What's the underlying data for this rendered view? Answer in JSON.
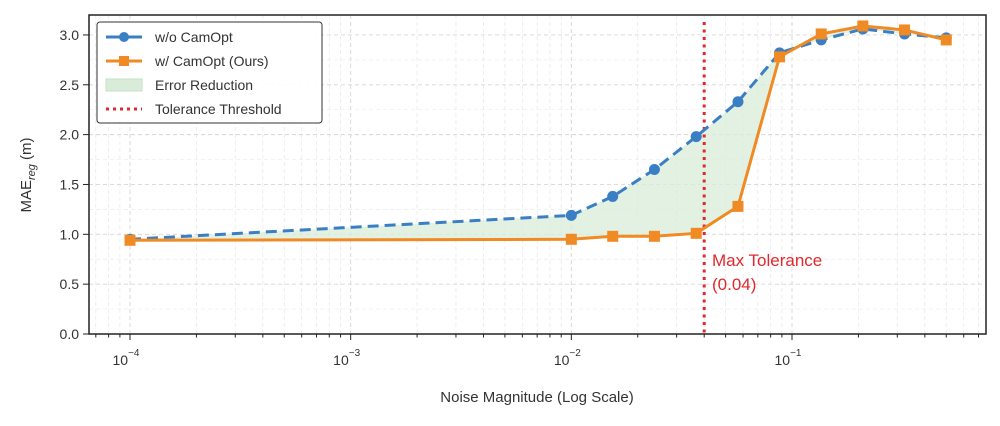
{
  "chart_data": {
    "type": "line",
    "title": "",
    "xlabel": "Noise Magnitude (Log Scale)",
    "ylabel_main": "MAE",
    "ylabel_sub": "reg",
    "ylabel_unit": " (m)",
    "xscale": "log",
    "xlim": [
      6.52e-05,
      0.757
    ],
    "ylim": [
      0,
      3.2
    ],
    "grid": true,
    "legend_position": "top-left",
    "x_ticks": [
      {
        "value": 0.0001,
        "base": "10",
        "exp": "−4"
      },
      {
        "value": 0.001,
        "base": "10",
        "exp": "−3"
      },
      {
        "value": 0.01,
        "base": "10",
        "exp": "−2"
      },
      {
        "value": 0.1,
        "base": "10",
        "exp": "−1"
      }
    ],
    "y_ticks": [
      "0.0",
      "0.5",
      "1.0",
      "1.5",
      "2.0",
      "2.5",
      "3.0"
    ],
    "x": [
      0.0001,
      0.01,
      0.0154,
      0.0238,
      0.0368,
      0.0569,
      0.0878,
      0.1356,
      0.2094,
      0.3237,
      0.5
    ],
    "series": [
      {
        "name": "w/o CamOpt",
        "color": "#3a7fc4",
        "style": "dashed",
        "marker": "circle",
        "values": [
          0.95,
          1.19,
          1.38,
          1.65,
          1.98,
          2.33,
          2.82,
          2.95,
          3.06,
          3.01,
          2.97
        ]
      },
      {
        "name": "w/ CamOpt (Ours)",
        "color": "#f08a24",
        "style": "solid",
        "marker": "square",
        "values": [
          0.94,
          0.95,
          0.98,
          0.98,
          1.01,
          1.28,
          2.78,
          3.01,
          3.09,
          3.05,
          2.95
        ]
      }
    ],
    "fill": {
      "name": "Error Reduction",
      "color": "#d9ecd9"
    },
    "threshold": {
      "name": "Tolerance Threshold",
      "value": 0.04,
      "color": "#e0282e",
      "annotation_line1": "Max Tolerance",
      "annotation_line2": "(0.04)"
    }
  }
}
